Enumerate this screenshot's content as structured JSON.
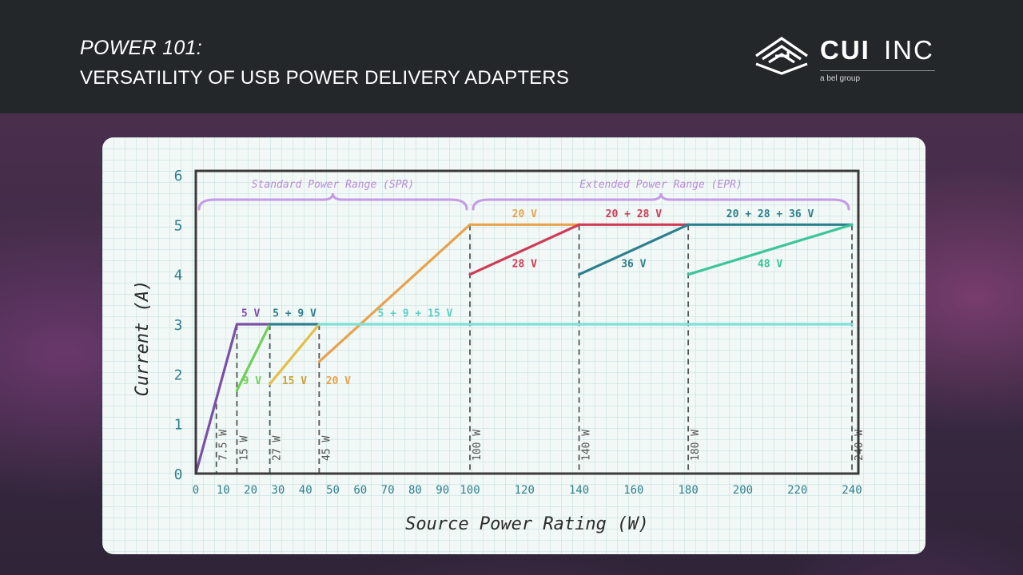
{
  "header": {
    "title_line1": "POWER 101:",
    "title_line2": "VERSATILITY OF USB POWER DELIVERY ADAPTERS"
  },
  "logo": {
    "brand_bold": "CUI",
    "brand_thin": "INC",
    "tagline": "a bel group",
    "icon": "layered-chevron-logo-icon"
  },
  "colors": {
    "header_bg": "#232729",
    "purple": "#7b4fa6",
    "green": "#6fcf5a",
    "yellow": "#e3c04a",
    "orange": "#e8a24c",
    "red": "#cf3a55",
    "teal": "#2e7f8e",
    "seafoam": "#3cc59a",
    "cyan": "#7ee0d6",
    "bracket": "#c59ae6",
    "axis": "#3a3a3a"
  },
  "chart_data": {
    "type": "line",
    "xlabel": "Source Power Rating (W)",
    "ylabel": "Current (A)",
    "xlim": [
      0,
      240
    ],
    "ylim": [
      0,
      6
    ],
    "x_ticks": [
      0,
      10,
      20,
      30,
      40,
      50,
      60,
      70,
      80,
      90,
      100,
      120,
      140,
      160,
      180,
      200,
      220,
      240
    ],
    "y_ticks": [
      0,
      1,
      2,
      3,
      4,
      5,
      6
    ],
    "x_axis_breakpoint": 100,
    "power_markers": [
      {
        "x": 7.5,
        "label": "7.5 W"
      },
      {
        "x": 15,
        "label": "15 W"
      },
      {
        "x": 27,
        "label": "27 W"
      },
      {
        "x": 45,
        "label": "45 W"
      },
      {
        "x": 100,
        "label": "100 W"
      },
      {
        "x": 140,
        "label": "140 W"
      },
      {
        "x": 180,
        "label": "180 W"
      },
      {
        "x": 240,
        "label": "240 W"
      }
    ],
    "series": [
      {
        "label": "5 V",
        "color": "#7b4fa6",
        "points": [
          [
            0,
            0
          ],
          [
            15,
            3
          ],
          [
            27,
            3
          ]
        ],
        "label_pos": [
          20,
          3.15
        ],
        "label_color": "#7b4fa6"
      },
      {
        "label": "9 V",
        "color": "#6fcf5a",
        "points": [
          [
            15,
            1.67
          ],
          [
            27,
            3
          ]
        ],
        "label_pos": [
          20.5,
          1.8
        ],
        "label_color": "#6fcf5a"
      },
      {
        "label": "5 + 9 V",
        "color": "#2e7f8e",
        "points": [
          [
            27,
            3
          ],
          [
            45,
            3
          ]
        ],
        "label_pos": [
          36,
          3.15
        ],
        "label_color": "#2e7f8e"
      },
      {
        "label": "15 V",
        "color": "#e3c04a",
        "points": [
          [
            27,
            1.8
          ],
          [
            45,
            3
          ]
        ],
        "label_pos": [
          36,
          1.8
        ],
        "label_color": "#c9a433"
      },
      {
        "label": "20 V",
        "color": "#e8a24c",
        "points": [
          [
            45,
            2.25
          ],
          [
            100,
            5
          ]
        ],
        "label_pos": [
          52,
          1.8
        ],
        "label_color": "#e8a24c"
      },
      {
        "label": "5 + 9 + 15 V",
        "color": "#7ee0d6",
        "points": [
          [
            45,
            3
          ],
          [
            240,
            3
          ]
        ],
        "label_pos": [
          80,
          3.15
        ],
        "label_color": "#5ccfc2"
      },
      {
        "label": "20 V",
        "color": "#e8a24c",
        "points": [
          [
            100,
            5
          ],
          [
            140,
            5
          ]
        ],
        "label_pos": [
          120,
          5.15
        ],
        "label_color": "#e8a24c"
      },
      {
        "label": "28 V",
        "color": "#cf3a55",
        "points": [
          [
            100,
            4
          ],
          [
            140,
            5
          ]
        ],
        "label_pos": [
          120,
          4.15
        ],
        "label_color": "#cf3a55"
      },
      {
        "label": "20 + 28 V",
        "color": "#cf3a55",
        "points": [
          [
            140,
            5
          ],
          [
            180,
            5
          ]
        ],
        "label_pos": [
          160,
          5.15
        ],
        "label_color": "#cf3a55"
      },
      {
        "label": "36 V",
        "color": "#2e7f8e",
        "points": [
          [
            140,
            4
          ],
          [
            180,
            5
          ]
        ],
        "label_pos": [
          160,
          4.15
        ],
        "label_color": "#2e7f8e"
      },
      {
        "label": "20 + 28 + 36 V",
        "color": "#2e7f8e",
        "points": [
          [
            180,
            5
          ],
          [
            240,
            5
          ]
        ],
        "label_pos": [
          210,
          5.15
        ],
        "label_color": "#2e7f8e"
      },
      {
        "label": "48 V",
        "color": "#3cc59a",
        "points": [
          [
            180,
            4
          ],
          [
            240,
            5
          ]
        ],
        "label_pos": [
          210,
          4.15
        ],
        "label_color": "#3cc59a"
      }
    ],
    "ranges": [
      {
        "label": "Standard Power Range (SPR)",
        "x_start": 0,
        "x_end": 100
      },
      {
        "label": "Extended Power Range (EPR)",
        "x_start": 100,
        "x_end": 240
      }
    ]
  }
}
